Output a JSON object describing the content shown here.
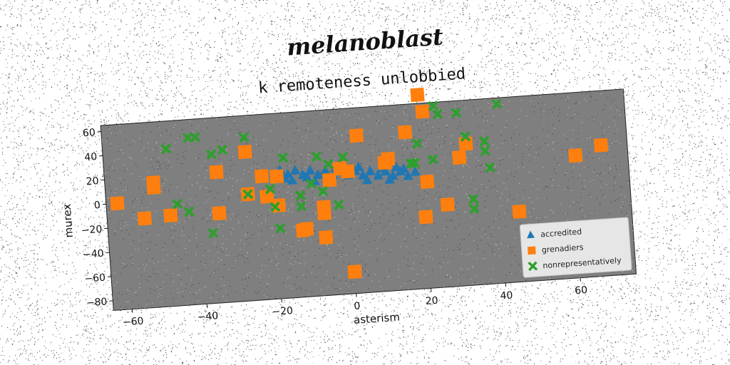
{
  "header": {
    "script_title": "melanoblast"
  },
  "chart_data": {
    "type": "scatter",
    "title": "k remoteness unlobbied",
    "xlabel": "asterism",
    "ylabel": "murex",
    "xlim": [
      -65,
      75
    ],
    "ylim": [
      -88,
      65
    ],
    "xticks": [
      -60,
      -40,
      -20,
      0,
      20,
      40,
      60
    ],
    "yticks": [
      -80,
      -60,
      -40,
      -20,
      0,
      20,
      40,
      60
    ],
    "grid": false,
    "legend_position": "lower-right",
    "series": [
      {
        "name": "accredited",
        "marker": "triangle",
        "color": "#1f77b4",
        "points": [
          [
            -18,
            18
          ],
          [
            -16,
            14
          ],
          [
            -14,
            17
          ],
          [
            -12,
            13
          ],
          [
            -10,
            16
          ],
          [
            -8,
            12
          ],
          [
            -6,
            15
          ],
          [
            -4,
            11
          ],
          [
            -2,
            14
          ],
          [
            0,
            10
          ],
          [
            2,
            13
          ],
          [
            4,
            9
          ],
          [
            6,
            12
          ],
          [
            8,
            8
          ],
          [
            10,
            11
          ],
          [
            12,
            7
          ],
          [
            14,
            10
          ],
          [
            16,
            6
          ],
          [
            18,
            9
          ],
          [
            -15,
            9
          ],
          [
            -9,
            7
          ],
          [
            -3,
            18
          ],
          [
            3,
            16
          ],
          [
            9,
            14
          ],
          [
            15,
            12
          ],
          [
            -11,
            11
          ],
          [
            5,
            5
          ],
          [
            11,
            4
          ],
          [
            -17,
            11
          ],
          [
            13,
            14
          ]
        ]
      },
      {
        "name": "grenadiers",
        "marker": "square",
        "color": "#ff7f0e",
        "points": [
          [
            -62,
            0
          ],
          [
            -55,
            -14
          ],
          [
            -52,
            15
          ],
          [
            -52,
            11
          ],
          [
            -48,
            -13
          ],
          [
            -35,
            -14
          ],
          [
            -35,
            20
          ],
          [
            -27,
            35
          ],
          [
            -27,
            0
          ],
          [
            -23,
            14
          ],
          [
            -22,
            -3
          ],
          [
            -19,
            13
          ],
          [
            -19,
            -11
          ],
          [
            -13,
            -33
          ],
          [
            -12,
            -32
          ],
          [
            -7,
            -40
          ],
          [
            -7,
            -20
          ],
          [
            -7,
            -15
          ],
          [
            -5,
            7
          ],
          [
            -2,
            16
          ],
          [
            0,
            13
          ],
          [
            3,
            42
          ],
          [
            0,
            -70
          ],
          [
            10,
            18
          ],
          [
            11,
            21
          ],
          [
            16,
            42
          ],
          [
            20,
            -29
          ],
          [
            20,
            72
          ],
          [
            21,
            0
          ],
          [
            21,
            58
          ],
          [
            26,
            -20
          ],
          [
            30,
            18
          ],
          [
            32,
            29
          ],
          [
            45,
            -30
          ],
          [
            61,
            13
          ],
          [
            68,
            20
          ],
          [
            -35,
            -14
          ]
        ]
      },
      {
        "name": "nonrepresentatively",
        "marker": "x",
        "color": "#2ca02c",
        "points": [
          [
            -48,
            42
          ],
          [
            -42,
            50
          ],
          [
            -40,
            50
          ],
          [
            -46,
            -4
          ],
          [
            -43,
            -11
          ],
          [
            -37,
            -30
          ],
          [
            -36,
            35
          ],
          [
            -33,
            38
          ],
          [
            -27,
            47
          ],
          [
            -27,
            0
          ],
          [
            -21,
            3
          ],
          [
            -20,
            -12
          ],
          [
            -19,
            -30
          ],
          [
            -17,
            28
          ],
          [
            -13,
            -13
          ],
          [
            -10,
            5
          ],
          [
            -8,
            27
          ],
          [
            -7,
            -2
          ],
          [
            -5,
            20
          ],
          [
            -3,
            -14
          ],
          [
            -1,
            25
          ],
          [
            18,
            16
          ],
          [
            19,
            32
          ],
          [
            23,
            18
          ],
          [
            24,
            62
          ],
          [
            25,
            55
          ],
          [
            30,
            55
          ],
          [
            32,
            35
          ],
          [
            33,
            -17
          ],
          [
            33,
            -25
          ],
          [
            37,
            30
          ],
          [
            37,
            22
          ],
          [
            38,
            8
          ],
          [
            41,
            60
          ],
          [
            -13,
            -4
          ],
          [
            17,
            16
          ]
        ]
      }
    ]
  }
}
